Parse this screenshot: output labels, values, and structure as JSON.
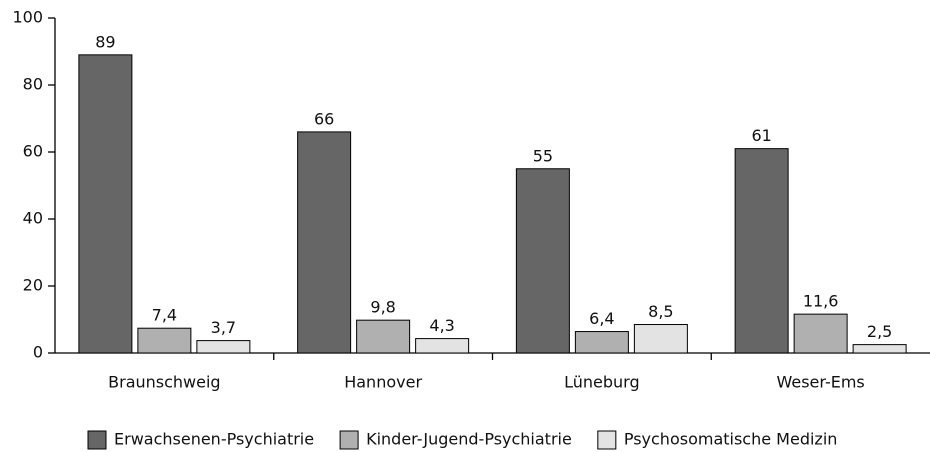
{
  "chart_data": {
    "type": "bar",
    "categories": [
      "Braunschweig",
      "Hannover",
      "Lüneburg",
      "Weser-Ems"
    ],
    "series": [
      {
        "name": "Erwachsenen-Psychiatrie",
        "color": "#666666",
        "values": [
          89,
          66,
          55,
          61
        ]
      },
      {
        "name": "Kinder-Jugend-Psychiatrie",
        "color": "#b0b0b0",
        "values": [
          7.4,
          9.8,
          6.4,
          11.6
        ],
        "value_labels": [
          "7,4",
          "9,8",
          "6,4",
          "11,6"
        ]
      },
      {
        "name": "Psychosomatische Medizin",
        "color": "#e3e3e3",
        "values": [
          3.7,
          4.3,
          8.5,
          2.5
        ],
        "value_labels": [
          "3,7",
          "4,3",
          "8,5",
          "2,5"
        ]
      }
    ],
    "ylim": [
      0,
      100
    ],
    "yticks": [
      0,
      20,
      40,
      60,
      80,
      100
    ],
    "grid": false,
    "legend": "bottom"
  }
}
